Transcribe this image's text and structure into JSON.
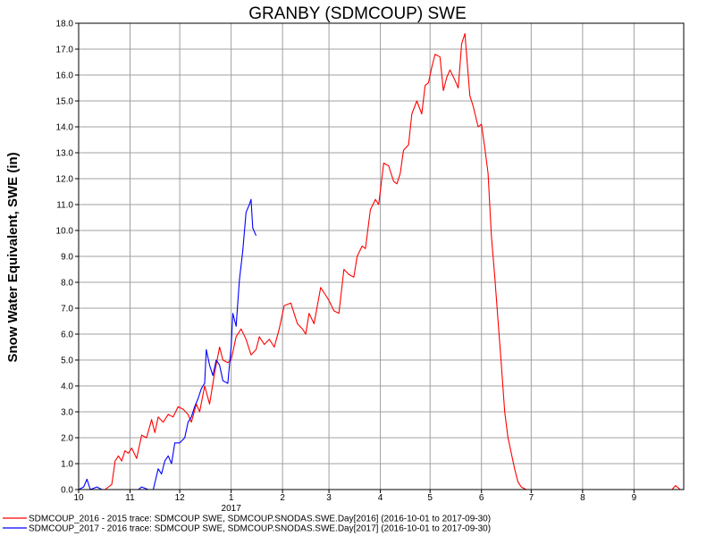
{
  "chart_data": {
    "type": "line",
    "title": "GRANBY (SDMCOUP) SWE",
    "ylabel": "Snow Water Equivalent, SWE (in)",
    "xlabel": "",
    "ylim": [
      0,
      18
    ],
    "yticks": [
      "0.0",
      "1.0",
      "2.0",
      "3.0",
      "4.0",
      "5.0",
      "6.0",
      "7.0",
      "8.0",
      "9.0",
      "10.0",
      "11.0",
      "12.0",
      "13.0",
      "14.0",
      "15.0",
      "16.0",
      "17.0",
      "18.0"
    ],
    "xlim": [
      "2016-10-01",
      "2017-09-30"
    ],
    "xticks": [
      {
        "label": "10",
        "date": "2016-10-01"
      },
      {
        "label": "11",
        "date": "2016-11-01"
      },
      {
        "label": "12",
        "date": "2016-12-01"
      },
      {
        "label": "1",
        "date": "2017-01-01"
      },
      {
        "label": "2",
        "date": "2017-02-01"
      },
      {
        "label": "3",
        "date": "2017-03-01"
      },
      {
        "label": "4",
        "date": "2017-04-01"
      },
      {
        "label": "5",
        "date": "2017-05-01"
      },
      {
        "label": "6",
        "date": "2017-06-01"
      },
      {
        "label": "7",
        "date": "2017-07-01"
      },
      {
        "label": "8",
        "date": "2017-08-01"
      },
      {
        "label": "9",
        "date": "2017-09-01"
      }
    ],
    "year_label": "2017",
    "grid": true,
    "legend_position": "bottom",
    "series": [
      {
        "name": "SDMCOUP_2016 - 2015 trace: SDMCOUP SWE, SDMCOUP.SNODAS.SWE.Day[2016] (2016-10-01 to 2017-09-30)",
        "color": "#ff0000",
        "points": [
          [
            "2016-10-01",
            0.0
          ],
          [
            "2016-10-17",
            0.0
          ],
          [
            "2016-10-21",
            0.2
          ],
          [
            "2016-10-23",
            1.1
          ],
          [
            "2016-10-25",
            1.3
          ],
          [
            "2016-10-27",
            1.1
          ],
          [
            "2016-10-29",
            1.5
          ],
          [
            "2016-10-31",
            1.4
          ],
          [
            "2016-11-02",
            1.6
          ],
          [
            "2016-11-05",
            1.2
          ],
          [
            "2016-11-08",
            2.1
          ],
          [
            "2016-11-11",
            2.0
          ],
          [
            "2016-11-14",
            2.7
          ],
          [
            "2016-11-16",
            2.2
          ],
          [
            "2016-11-18",
            2.8
          ],
          [
            "2016-11-21",
            2.6
          ],
          [
            "2016-11-24",
            2.9
          ],
          [
            "2016-11-27",
            2.8
          ],
          [
            "2016-11-30",
            3.2
          ],
          [
            "2016-12-03",
            3.1
          ],
          [
            "2016-12-06",
            2.9
          ],
          [
            "2016-12-08",
            2.6
          ],
          [
            "2016-12-11",
            3.3
          ],
          [
            "2016-12-13",
            3.0
          ],
          [
            "2016-12-16",
            4.0
          ],
          [
            "2016-12-19",
            3.3
          ],
          [
            "2016-12-22",
            4.5
          ],
          [
            "2016-12-25",
            5.5
          ],
          [
            "2016-12-27",
            5.0
          ],
          [
            "2016-12-30",
            4.9
          ],
          [
            "2017-01-01",
            5.0
          ],
          [
            "2017-01-04",
            5.9
          ],
          [
            "2017-01-07",
            6.2
          ],
          [
            "2017-01-10",
            5.8
          ],
          [
            "2017-01-13",
            5.2
          ],
          [
            "2017-01-16",
            5.4
          ],
          [
            "2017-01-18",
            5.9
          ],
          [
            "2017-01-21",
            5.6
          ],
          [
            "2017-01-24",
            5.8
          ],
          [
            "2017-01-27",
            5.5
          ],
          [
            "2017-01-30",
            6.2
          ],
          [
            "2017-02-02",
            7.1
          ],
          [
            "2017-02-06",
            7.2
          ],
          [
            "2017-02-10",
            6.4
          ],
          [
            "2017-02-13",
            6.2
          ],
          [
            "2017-02-15",
            6.0
          ],
          [
            "2017-02-17",
            6.8
          ],
          [
            "2017-02-20",
            6.4
          ],
          [
            "2017-02-24",
            7.8
          ],
          [
            "2017-02-27",
            7.5
          ],
          [
            "2017-03-01",
            7.3
          ],
          [
            "2017-03-04",
            6.9
          ],
          [
            "2017-03-07",
            6.8
          ],
          [
            "2017-03-10",
            8.5
          ],
          [
            "2017-03-13",
            8.3
          ],
          [
            "2017-03-16",
            8.2
          ],
          [
            "2017-03-18",
            9.0
          ],
          [
            "2017-03-21",
            9.4
          ],
          [
            "2017-03-23",
            9.3
          ],
          [
            "2017-03-26",
            10.8
          ],
          [
            "2017-03-29",
            11.2
          ],
          [
            "2017-03-31",
            11.0
          ],
          [
            "2017-04-03",
            12.6
          ],
          [
            "2017-04-06",
            12.5
          ],
          [
            "2017-04-09",
            11.9
          ],
          [
            "2017-04-11",
            11.8
          ],
          [
            "2017-04-13",
            12.2
          ],
          [
            "2017-04-15",
            13.1
          ],
          [
            "2017-04-18",
            13.3
          ],
          [
            "2017-04-20",
            14.5
          ],
          [
            "2017-04-23",
            15.0
          ],
          [
            "2017-04-26",
            14.5
          ],
          [
            "2017-04-28",
            15.6
          ],
          [
            "2017-04-30",
            15.7
          ],
          [
            "2017-05-02",
            16.3
          ],
          [
            "2017-05-04",
            16.8
          ],
          [
            "2017-05-07",
            16.7
          ],
          [
            "2017-05-09",
            15.4
          ],
          [
            "2017-05-11",
            15.9
          ],
          [
            "2017-05-13",
            16.2
          ],
          [
            "2017-05-16",
            15.8
          ],
          [
            "2017-05-18",
            15.5
          ],
          [
            "2017-05-20",
            17.2
          ],
          [
            "2017-05-22",
            17.6
          ],
          [
            "2017-05-25",
            15.2
          ],
          [
            "2017-05-27",
            14.8
          ],
          [
            "2017-05-30",
            14.0
          ],
          [
            "2017-06-01",
            14.1
          ],
          [
            "2017-06-03",
            13.2
          ],
          [
            "2017-06-05",
            12.2
          ],
          [
            "2017-06-07",
            9.8
          ],
          [
            "2017-06-09",
            8.2
          ],
          [
            "2017-06-11",
            6.5
          ],
          [
            "2017-06-13",
            4.8
          ],
          [
            "2017-06-15",
            3.0
          ],
          [
            "2017-06-17",
            2.0
          ],
          [
            "2017-06-19",
            1.4
          ],
          [
            "2017-06-21",
            0.8
          ],
          [
            "2017-06-23",
            0.3
          ],
          [
            "2017-06-25",
            0.1
          ],
          [
            "2017-06-28",
            0.0
          ],
          [
            "2017-09-24",
            0.0
          ],
          [
            "2017-09-26",
            0.15
          ],
          [
            "2017-09-29",
            0.0
          ]
        ]
      },
      {
        "name": "SDMCOUP_2017 - 2016 trace: SDMCOUP SWE, SDMCOUP.SNODAS.SWE.Day[2017] (2016-10-01 to 2017-09-30)",
        "color": "#0000ff",
        "points": [
          [
            "2016-10-01",
            0.0
          ],
          [
            "2016-10-04",
            0.1
          ],
          [
            "2016-10-06",
            0.4
          ],
          [
            "2016-10-08",
            0.0
          ],
          [
            "2016-10-12",
            0.1
          ],
          [
            "2016-10-15",
            0.0
          ],
          [
            "2016-11-06",
            0.0
          ],
          [
            "2016-11-08",
            0.1
          ],
          [
            "2016-11-12",
            0.0
          ],
          [
            "2016-11-15",
            0.0
          ],
          [
            "2016-11-18",
            0.8
          ],
          [
            "2016-11-20",
            0.6
          ],
          [
            "2016-11-22",
            1.1
          ],
          [
            "2016-11-24",
            1.3
          ],
          [
            "2016-11-26",
            1.0
          ],
          [
            "2016-11-28",
            1.8
          ],
          [
            "2016-12-01",
            1.8
          ],
          [
            "2016-12-04",
            2.0
          ],
          [
            "2016-12-06",
            2.6
          ],
          [
            "2016-12-08",
            2.8
          ],
          [
            "2016-12-10",
            3.2
          ],
          [
            "2016-12-12",
            3.5
          ],
          [
            "2016-12-14",
            3.9
          ],
          [
            "2016-12-16",
            4.1
          ],
          [
            "2016-12-17",
            5.4
          ],
          [
            "2016-12-19",
            4.8
          ],
          [
            "2016-12-21",
            4.4
          ],
          [
            "2016-12-23",
            5.0
          ],
          [
            "2016-12-25",
            4.8
          ],
          [
            "2016-12-27",
            4.2
          ],
          [
            "2016-12-30",
            4.1
          ],
          [
            "2017-01-01",
            5.5
          ],
          [
            "2017-01-02",
            6.8
          ],
          [
            "2017-01-04",
            6.3
          ],
          [
            "2017-01-06",
            8.1
          ],
          [
            "2017-01-08",
            9.2
          ],
          [
            "2017-01-10",
            10.7
          ],
          [
            "2017-01-12",
            11.0
          ],
          [
            "2017-01-13",
            11.2
          ],
          [
            "2017-01-14",
            10.1
          ],
          [
            "2017-01-16",
            9.8
          ]
        ]
      }
    ]
  }
}
